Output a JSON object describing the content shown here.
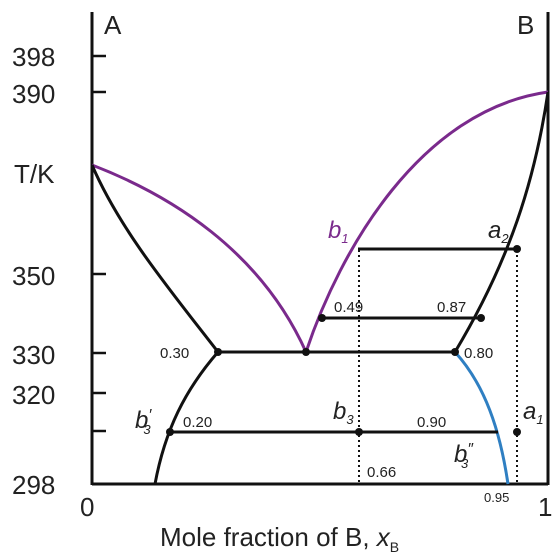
{
  "diagram": {
    "corner_left": "A",
    "corner_right": "B",
    "y_axis_label": "T/K",
    "x_axis_label": "Mole fraction of B, ",
    "x_axis_var": "x",
    "x_axis_sub": "B",
    "y_ticks": [
      "398",
      "390",
      "350",
      "330",
      "320",
      "298"
    ],
    "x_ticks": [
      "0",
      "1"
    ],
    "point_labels": {
      "b1": {
        "main": "b",
        "sub": "1"
      },
      "a2": {
        "main": "a",
        "sub": "2"
      },
      "b3": {
        "main": "b",
        "sub": "3"
      },
      "a1": {
        "main": "a",
        "sub": "1"
      },
      "b3prime": {
        "main": "b",
        "sub": "3",
        "prime": "′"
      },
      "b3dprime": {
        "main": "b",
        "sub": "3",
        "prime": "″"
      }
    },
    "compositions": {
      "c049": "0.49",
      "c087": "0.87",
      "c030": "0.30",
      "c080": "0.80",
      "c020": "0.20",
      "c090": "0.90",
      "c066": "0.66",
      "c095": "0.95"
    },
    "colors": {
      "liquidus": "#7a2a8c",
      "solvus_blue": "#2f7fc2",
      "black": "#111111"
    }
  }
}
